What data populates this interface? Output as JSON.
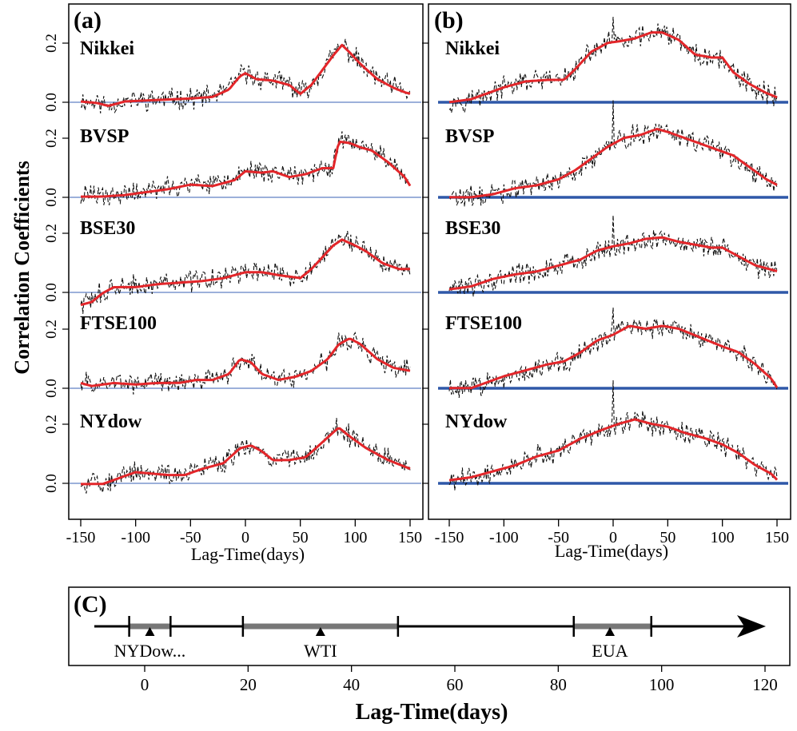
{
  "figure": {
    "y_axis_label": "Correlation Coefficients",
    "panel_a_label": "(a)",
    "panel_b_label": "(b)",
    "panel_c_label": "(C)",
    "ab_x_axis_label": "Lag-Time(days)",
    "c_x_axis_label": "Lag-Time(days)"
  },
  "chart_data": [
    {
      "panel": "a",
      "type": "line",
      "xlabel": "Lag-Time(days)",
      "ylabel": "Correlation Coefficients",
      "xlim": [
        -150,
        150
      ],
      "x_ticks": [
        -150,
        -100,
        -50,
        0,
        50,
        100,
        150
      ],
      "y_ticks": [
        "0.0",
        "0.2"
      ],
      "ylim_per_row": [
        -0.05,
        0.24
      ],
      "zero_line": true,
      "subplots": [
        {
          "name": "Nikkei",
          "smooth": [
            [
              -150,
              0.005
            ],
            [
              -135,
              0.0
            ],
            [
              -125,
              -0.01
            ],
            [
              -110,
              0.005
            ],
            [
              -80,
              0.01
            ],
            [
              -50,
              0.015
            ],
            [
              -30,
              0.02
            ],
            [
              -15,
              0.045
            ],
            [
              -5,
              0.09
            ],
            [
              0,
              0.1
            ],
            [
              10,
              0.08
            ],
            [
              25,
              0.075
            ],
            [
              40,
              0.06
            ],
            [
              50,
              0.03
            ],
            [
              60,
              0.06
            ],
            [
              70,
              0.11
            ],
            [
              80,
              0.16
            ],
            [
              88,
              0.195
            ],
            [
              95,
              0.17
            ],
            [
              105,
              0.13
            ],
            [
              120,
              0.08
            ],
            [
              135,
              0.05
            ],
            [
              145,
              0.035
            ],
            [
              150,
              0.03
            ]
          ]
        },
        {
          "name": "BVSP",
          "smooth": [
            [
              -150,
              0.005
            ],
            [
              -130,
              0.005
            ],
            [
              -110,
              0.01
            ],
            [
              -90,
              0.02
            ],
            [
              -70,
              0.03
            ],
            [
              -50,
              0.045
            ],
            [
              -30,
              0.04
            ],
            [
              -10,
              0.06
            ],
            [
              0,
              0.09
            ],
            [
              15,
              0.085
            ],
            [
              25,
              0.09
            ],
            [
              40,
              0.07
            ],
            [
              55,
              0.08
            ],
            [
              70,
              0.1
            ],
            [
              80,
              0.1
            ],
            [
              85,
              0.19
            ],
            [
              95,
              0.185
            ],
            [
              105,
              0.17
            ],
            [
              115,
              0.16
            ],
            [
              130,
              0.12
            ],
            [
              145,
              0.07
            ],
            [
              150,
              0.04
            ]
          ]
        },
        {
          "name": "BSE30",
          "smooth": [
            [
              -150,
              -0.04
            ],
            [
              -140,
              -0.03
            ],
            [
              -130,
              0.0
            ],
            [
              -120,
              0.02
            ],
            [
              -100,
              0.02
            ],
            [
              -80,
              0.03
            ],
            [
              -60,
              0.035
            ],
            [
              -40,
              0.04
            ],
            [
              -20,
              0.05
            ],
            [
              0,
              0.07
            ],
            [
              15,
              0.07
            ],
            [
              30,
              0.06
            ],
            [
              50,
              0.05
            ],
            [
              60,
              0.08
            ],
            [
              70,
              0.12
            ],
            [
              80,
              0.16
            ],
            [
              88,
              0.18
            ],
            [
              100,
              0.16
            ],
            [
              110,
              0.14
            ],
            [
              125,
              0.1
            ],
            [
              140,
              0.08
            ],
            [
              150,
              0.08
            ]
          ]
        },
        {
          "name": "FTSE100",
          "smooth": [
            [
              -150,
              0.02
            ],
            [
              -140,
              0.01
            ],
            [
              -120,
              0.02
            ],
            [
              -100,
              0.015
            ],
            [
              -80,
              0.02
            ],
            [
              -60,
              0.02
            ],
            [
              -45,
              0.03
            ],
            [
              -30,
              0.03
            ],
            [
              -15,
              0.05
            ],
            [
              -5,
              0.1
            ],
            [
              5,
              0.09
            ],
            [
              15,
              0.05
            ],
            [
              30,
              0.03
            ],
            [
              45,
              0.04
            ],
            [
              60,
              0.06
            ],
            [
              75,
              0.1
            ],
            [
              85,
              0.15
            ],
            [
              95,
              0.17
            ],
            [
              105,
              0.15
            ],
            [
              120,
              0.1
            ],
            [
              135,
              0.07
            ],
            [
              150,
              0.06
            ]
          ]
        },
        {
          "name": "NYdow",
          "smooth": [
            [
              -150,
              0.0
            ],
            [
              -130,
              0.0
            ],
            [
              -115,
              0.02
            ],
            [
              -100,
              0.04
            ],
            [
              -85,
              0.035
            ],
            [
              -70,
              0.03
            ],
            [
              -55,
              0.03
            ],
            [
              -40,
              0.05
            ],
            [
              -20,
              0.07
            ],
            [
              -5,
              0.12
            ],
            [
              5,
              0.13
            ],
            [
              15,
              0.11
            ],
            [
              25,
              0.08
            ],
            [
              40,
              0.08
            ],
            [
              55,
              0.09
            ],
            [
              70,
              0.14
            ],
            [
              85,
              0.19
            ],
            [
              95,
              0.16
            ],
            [
              110,
              0.12
            ],
            [
              130,
              0.08
            ],
            [
              150,
              0.05
            ]
          ]
        }
      ]
    },
    {
      "panel": "b",
      "type": "line",
      "xlabel": "Lag-Time(days)",
      "ylabel": "Correlation Coefficients",
      "xlim": [
        -150,
        150
      ],
      "x_ticks": [
        -150,
        -100,
        -50,
        0,
        50,
        100,
        150
      ],
      "y_ticks": [
        "0.0",
        "0.2"
      ],
      "ylim_per_row": [
        -0.05,
        0.24
      ],
      "zero_line": true,
      "subplots": [
        {
          "name": "Nikkei",
          "smooth": [
            [
              -150,
              0.0
            ],
            [
              -130,
              0.01
            ],
            [
              -115,
              0.03
            ],
            [
              -100,
              0.05
            ],
            [
              -80,
              0.07
            ],
            [
              -60,
              0.075
            ],
            [
              -45,
              0.075
            ],
            [
              -35,
              0.11
            ],
            [
              -20,
              0.17
            ],
            [
              -5,
              0.2
            ],
            [
              5,
              0.205
            ],
            [
              20,
              0.215
            ],
            [
              35,
              0.235
            ],
            [
              45,
              0.235
            ],
            [
              60,
              0.21
            ],
            [
              75,
              0.16
            ],
            [
              90,
              0.15
            ],
            [
              100,
              0.15
            ],
            [
              110,
              0.1
            ],
            [
              125,
              0.06
            ],
            [
              140,
              0.03
            ],
            [
              150,
              0.015
            ]
          ]
        },
        {
          "name": "BVSP",
          "smooth": [
            [
              -150,
              0.0
            ],
            [
              -130,
              0.0
            ],
            [
              -110,
              0.01
            ],
            [
              -90,
              0.03
            ],
            [
              -70,
              0.04
            ],
            [
              -50,
              0.06
            ],
            [
              -35,
              0.09
            ],
            [
              -20,
              0.13
            ],
            [
              -5,
              0.17
            ],
            [
              10,
              0.2
            ],
            [
              25,
              0.21
            ],
            [
              40,
              0.23
            ],
            [
              50,
              0.22
            ],
            [
              65,
              0.2
            ],
            [
              80,
              0.18
            ],
            [
              95,
              0.16
            ],
            [
              110,
              0.14
            ],
            [
              125,
              0.1
            ],
            [
              140,
              0.06
            ],
            [
              150,
              0.04
            ]
          ]
        },
        {
          "name": "BSE30",
          "smooth": [
            [
              -150,
              0.01
            ],
            [
              -130,
              0.02
            ],
            [
              -110,
              0.045
            ],
            [
              -90,
              0.06
            ],
            [
              -70,
              0.07
            ],
            [
              -50,
              0.09
            ],
            [
              -30,
              0.11
            ],
            [
              -15,
              0.14
            ],
            [
              0,
              0.155
            ],
            [
              15,
              0.165
            ],
            [
              30,
              0.18
            ],
            [
              45,
              0.185
            ],
            [
              60,
              0.17
            ],
            [
              75,
              0.16
            ],
            [
              90,
              0.15
            ],
            [
              100,
              0.15
            ],
            [
              115,
              0.12
            ],
            [
              130,
              0.09
            ],
            [
              150,
              0.07
            ]
          ]
        },
        {
          "name": "FTSE100",
          "smooth": [
            [
              -150,
              0.0
            ],
            [
              -130,
              0.0
            ],
            [
              -115,
              0.02
            ],
            [
              -100,
              0.04
            ],
            [
              -80,
              0.06
            ],
            [
              -60,
              0.08
            ],
            [
              -45,
              0.09
            ],
            [
              -30,
              0.12
            ],
            [
              -15,
              0.16
            ],
            [
              0,
              0.18
            ],
            [
              15,
              0.21
            ],
            [
              30,
              0.2
            ],
            [
              45,
              0.21
            ],
            [
              60,
              0.2
            ],
            [
              80,
              0.17
            ],
            [
              100,
              0.14
            ],
            [
              115,
              0.12
            ],
            [
              130,
              0.08
            ],
            [
              145,
              0.03
            ],
            [
              150,
              0.0
            ]
          ]
        },
        {
          "name": "NYdow",
          "smooth": [
            [
              -150,
              0.01
            ],
            [
              -130,
              0.02
            ],
            [
              -110,
              0.04
            ],
            [
              -90,
              0.06
            ],
            [
              -70,
              0.09
            ],
            [
              -50,
              0.11
            ],
            [
              -30,
              0.15
            ],
            [
              -10,
              0.18
            ],
            [
              5,
              0.2
            ],
            [
              20,
              0.215
            ],
            [
              35,
              0.2
            ],
            [
              50,
              0.19
            ],
            [
              65,
              0.17
            ],
            [
              85,
              0.15
            ],
            [
              100,
              0.13
            ],
            [
              115,
              0.1
            ],
            [
              130,
              0.06
            ],
            [
              145,
              0.03
            ],
            [
              150,
              0.01
            ]
          ]
        }
      ]
    },
    {
      "panel": "C",
      "type": "timeline",
      "xlabel": "Lag-Time(days)",
      "xlim": [
        -10,
        122
      ],
      "x_ticks": [
        0,
        20,
        40,
        60,
        80,
        100,
        120
      ],
      "intervals": [
        {
          "name": "NYDow...",
          "start": -3,
          "end": 5,
          "marker": 1
        },
        {
          "name": "WTI",
          "start": 19,
          "end": 49,
          "marker": 34
        },
        {
          "name": "EUA",
          "start": 83,
          "end": 98,
          "marker": 90
        }
      ]
    }
  ]
}
